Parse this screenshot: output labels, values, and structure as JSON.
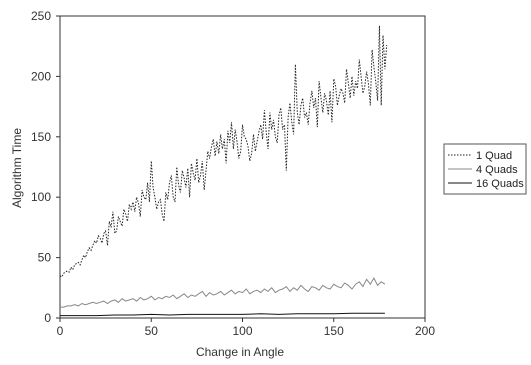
{
  "chart_data": {
    "type": "line",
    "xlabel": "Change in Angle",
    "ylabel": "Algorithm Time",
    "xlim": [
      0,
      200
    ],
    "ylim": [
      0,
      250
    ],
    "xticks": [
      0,
      50,
      100,
      150,
      200
    ],
    "yticks": [
      0,
      50,
      100,
      150,
      200,
      250
    ],
    "grid": false,
    "legend_position": "right",
    "colors": {
      "axis": "#333333",
      "series_1quad": "#222222",
      "series_4quads": "#888888",
      "series_16quads": "#111111"
    },
    "series": [
      {
        "name": "1 Quad",
        "style": "dotted",
        "x": [
          0,
          1,
          2,
          3,
          4,
          5,
          6,
          7,
          8,
          9,
          10,
          11,
          12,
          13,
          14,
          15,
          16,
          17,
          18,
          19,
          20,
          21,
          22,
          23,
          24,
          25,
          26,
          27,
          28,
          29,
          30,
          31,
          32,
          33,
          34,
          35,
          36,
          37,
          38,
          39,
          40,
          41,
          42,
          43,
          44,
          45,
          46,
          47,
          48,
          49,
          50,
          51,
          52,
          53,
          54,
          55,
          56,
          57,
          58,
          59,
          60,
          61,
          62,
          63,
          64,
          65,
          66,
          67,
          68,
          69,
          70,
          71,
          72,
          73,
          74,
          75,
          76,
          77,
          78,
          79,
          80,
          81,
          82,
          83,
          84,
          85,
          86,
          87,
          88,
          89,
          90,
          91,
          92,
          93,
          94,
          95,
          96,
          97,
          98,
          99,
          100,
          101,
          102,
          103,
          104,
          105,
          106,
          107,
          108,
          109,
          110,
          111,
          112,
          113,
          114,
          115,
          116,
          117,
          118,
          119,
          120,
          121,
          122,
          123,
          124,
          125,
          126,
          127,
          128,
          129,
          130,
          131,
          132,
          133,
          134,
          135,
          136,
          137,
          138,
          139,
          140,
          141,
          142,
          143,
          144,
          145,
          146,
          147,
          148,
          149,
          150,
          151,
          152,
          153,
          154,
          155,
          156,
          157,
          158,
          159,
          160,
          161,
          162,
          163,
          164,
          165,
          166,
          167,
          168,
          169,
          170,
          171,
          172,
          173,
          174,
          175,
          176,
          177,
          178,
          179
        ],
        "values": [
          35,
          34,
          37,
          38,
          39,
          38,
          42,
          40,
          44,
          45,
          46,
          44,
          48,
          52,
          50,
          55,
          58,
          56,
          60,
          64,
          62,
          68,
          66,
          62,
          70,
          72,
          60,
          80,
          75,
          88,
          70,
          72,
          84,
          80,
          76,
          90,
          86,
          80,
          94,
          90,
          96,
          88,
          100,
          95,
          84,
          106,
          100,
          98,
          112,
          96,
          130,
          108,
          100,
          90,
          96,
          98,
          86,
          80,
          104,
          98,
          112,
          118,
          100,
          96,
          125,
          110,
          104,
          122,
          116,
          108,
          124,
          100,
          128,
          120,
          114,
          132,
          112,
          118,
          130,
          106,
          122,
          138,
          132,
          142,
          148,
          134,
          146,
          136,
          152,
          140,
          148,
          128,
          155,
          145,
          162,
          140,
          156,
          146,
          132,
          138,
          160,
          150,
          148,
          142,
          130,
          136,
          152,
          138,
          146,
          154,
          160,
          148,
          172,
          154,
          140,
          170,
          156,
          164,
          150,
          145,
          168,
          174,
          156,
          160,
          122,
          166,
          178,
          162,
          152,
          210,
          170,
          160,
          176,
          182,
          166,
          170,
          160,
          178,
          188,
          174,
          182,
          158,
          196,
          182,
          170,
          186,
          180,
          168,
          188,
          162,
          198,
          192,
          176,
          184,
          190,
          186,
          178,
          206,
          194,
          182,
          200,
          184,
          196,
          190,
          214,
          200,
          186,
          192,
          204,
          194,
          176,
          222,
          208,
          196,
          180,
          242,
          176,
          234,
          206,
          226
        ]
      },
      {
        "name": "4 Quads",
        "style": "solid",
        "x": [
          0,
          2,
          4,
          6,
          8,
          10,
          12,
          14,
          16,
          18,
          20,
          22,
          24,
          26,
          28,
          30,
          32,
          34,
          36,
          38,
          40,
          42,
          44,
          46,
          48,
          50,
          52,
          54,
          56,
          58,
          60,
          62,
          64,
          66,
          68,
          70,
          72,
          74,
          76,
          78,
          80,
          82,
          84,
          86,
          88,
          90,
          92,
          94,
          96,
          98,
          100,
          102,
          104,
          106,
          108,
          110,
          112,
          114,
          116,
          118,
          120,
          122,
          124,
          126,
          128,
          130,
          132,
          134,
          136,
          138,
          140,
          142,
          144,
          146,
          148,
          150,
          152,
          154,
          156,
          158,
          160,
          162,
          164,
          166,
          168,
          170,
          172,
          174,
          176,
          178
        ],
        "values": [
          9,
          9,
          10,
          10,
          11,
          10,
          12,
          11,
          12,
          13,
          12,
          13,
          14,
          12,
          14,
          15,
          13,
          16,
          14,
          15,
          16,
          14,
          17,
          15,
          16,
          18,
          15,
          17,
          16,
          18,
          17,
          19,
          16,
          18,
          20,
          17,
          19,
          18,
          20,
          22,
          18,
          21,
          19,
          20,
          22,
          19,
          21,
          23,
          20,
          22,
          21,
          24,
          20,
          22,
          23,
          21,
          24,
          22,
          25,
          21,
          23,
          24,
          26,
          22,
          25,
          23,
          27,
          24,
          22,
          26,
          25,
          23,
          27,
          25,
          24,
          28,
          26,
          25,
          29,
          27,
          24,
          28,
          30,
          26,
          32,
          28,
          33,
          27,
          30,
          28
        ]
      },
      {
        "name": "16 Quads",
        "style": "solid",
        "x": [
          0,
          10,
          20,
          30,
          40,
          50,
          60,
          70,
          80,
          90,
          100,
          110,
          120,
          130,
          140,
          150,
          160,
          170,
          178
        ],
        "values": [
          2,
          2,
          2,
          2.5,
          2.5,
          3,
          2.5,
          3,
          3,
          3,
          3,
          3.5,
          3,
          3.5,
          3.5,
          3.5,
          4,
          4,
          4
        ]
      }
    ]
  }
}
